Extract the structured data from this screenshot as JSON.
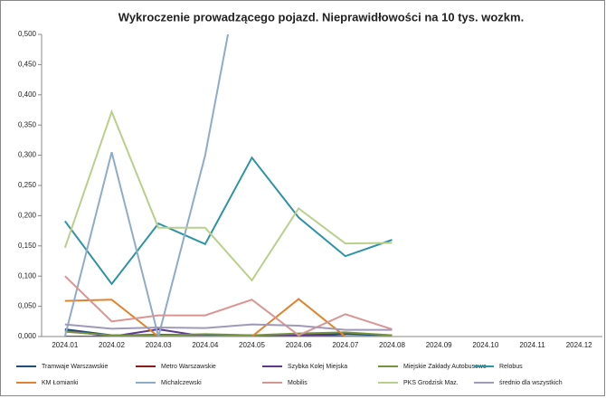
{
  "chart_data": {
    "type": "line",
    "title": "Wykroczenie prowadzącego pojazd. Nieprawidłowości na 10 tys. wozkm.",
    "categories": [
      "2024.01",
      "2024.02",
      "2024.03",
      "2024.04",
      "2024.05",
      "2024.06",
      "2024.07",
      "2024.08",
      "2024.09",
      "2024.10",
      "2024.11",
      "2024.12"
    ],
    "ylim": [
      0,
      0.5
    ],
    "yticks": [
      {
        "value": 0,
        "label": "0,000"
      },
      {
        "value": 0.05,
        "label": "0,050"
      },
      {
        "value": 0.1,
        "label": "0,100"
      },
      {
        "value": 0.15,
        "label": "0,150"
      },
      {
        "value": 0.2,
        "label": "0,200"
      },
      {
        "value": 0.25,
        "label": "0,250"
      },
      {
        "value": 0.3,
        "label": "0,300"
      },
      {
        "value": 0.35,
        "label": "0,350"
      },
      {
        "value": 0.4,
        "label": "0,400"
      },
      {
        "value": 0.45,
        "label": "0,450"
      },
      {
        "value": 0.5,
        "label": "0,500"
      }
    ],
    "grid": false,
    "legend": "bottom",
    "series": [
      {
        "name": "Tramwaje Warszawskie",
        "color": "#1f4e79",
        "values": [
          0.012,
          0.002,
          0.003,
          0.003,
          0.002,
          0.003,
          0.004,
          0.002,
          null,
          null,
          null,
          null
        ]
      },
      {
        "name": "Metro Warszawskie",
        "color": "#8b1a1a",
        "values": [
          0,
          0,
          0,
          0,
          0,
          0,
          0,
          0,
          null,
          null,
          null,
          null
        ]
      },
      {
        "name": "Szybka Kolej Miejska",
        "color": "#5b3a8c",
        "values": [
          0.01,
          0,
          0.012,
          0,
          0,
          0.003,
          0,
          0,
          null,
          null,
          null,
          null
        ]
      },
      {
        "name": "Miejskie Zakłady Autobusowe",
        "color": "#76923c",
        "values": [
          0.008,
          0.002,
          0.002,
          0.004,
          0.002,
          0.005,
          0.007,
          0.002,
          null,
          null,
          null,
          null
        ]
      },
      {
        "name": "Relobus",
        "color": "#2e93a6",
        "values": [
          0.191,
          0.087,
          0.187,
          0.153,
          0.296,
          0.197,
          0.133,
          0.16,
          null,
          null,
          null,
          null
        ]
      },
      {
        "name": "KM Łomianki",
        "color": "#e0832e",
        "values": [
          0.059,
          0.061,
          0,
          0,
          0,
          0.062,
          0,
          0,
          null,
          null,
          null,
          null
        ]
      },
      {
        "name": "Michalczewski",
        "color": "#8fabcc",
        "values": [
          0,
          0.305,
          0,
          0.3,
          0.71,
          null,
          null,
          null,
          null,
          null,
          null,
          null
        ]
      },
      {
        "name": "Mobilis",
        "color": "#d99594",
        "values": [
          0.1,
          0.025,
          0.035,
          0.035,
          0.061,
          0.002,
          0.037,
          0.012,
          null,
          null,
          null,
          null
        ]
      },
      {
        "name": "PKS Grodzisk Maz.",
        "color": "#b8d08a",
        "values": [
          0.147,
          0.372,
          0.18,
          0.18,
          0.093,
          0.212,
          0.154,
          0.155,
          null,
          null,
          null,
          null
        ]
      },
      {
        "name": "średnio dla wszystkich",
        "color": "#a099b8",
        "values": [
          0.02,
          0.013,
          0.015,
          0.014,
          0.02,
          0.018,
          0.011,
          0.011,
          null,
          null,
          null,
          null
        ]
      }
    ]
  }
}
